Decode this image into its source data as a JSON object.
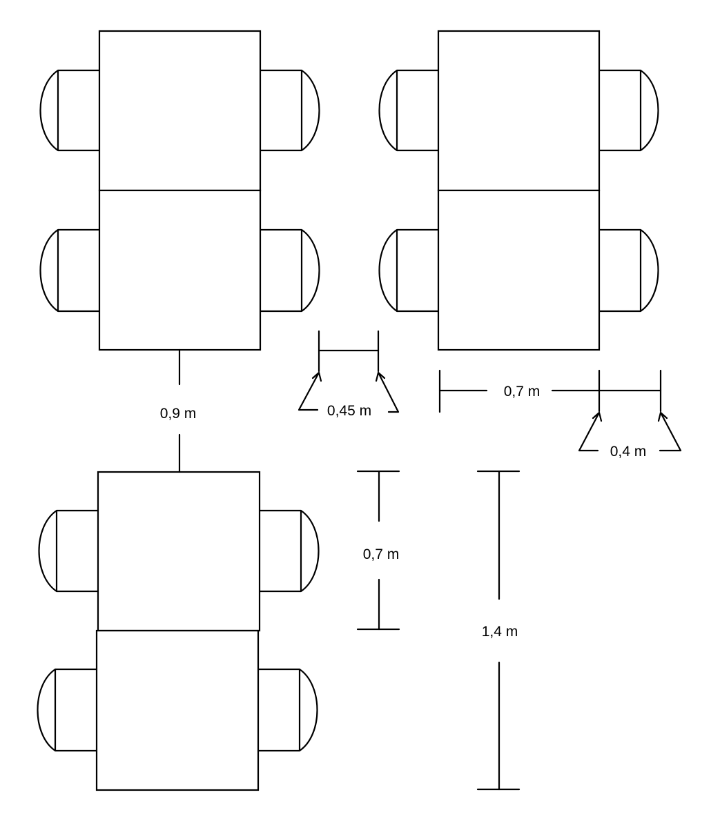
{
  "diagram": {
    "labels": {
      "aisle_between_groups": "0,9 m",
      "chair_depth": "0,45 m",
      "table_width": "0,7 m",
      "chair_depth_small": "0,4 m",
      "table_length": "0,7 m",
      "double_table_length": "1,4 m"
    },
    "table_groups": [
      {
        "name": "group-top-left",
        "tables": 2,
        "chairs": 4
      },
      {
        "name": "group-top-right",
        "tables": 2,
        "chairs": 4
      },
      {
        "name": "group-bottom-left",
        "tables": 2,
        "chairs": 4
      }
    ]
  }
}
